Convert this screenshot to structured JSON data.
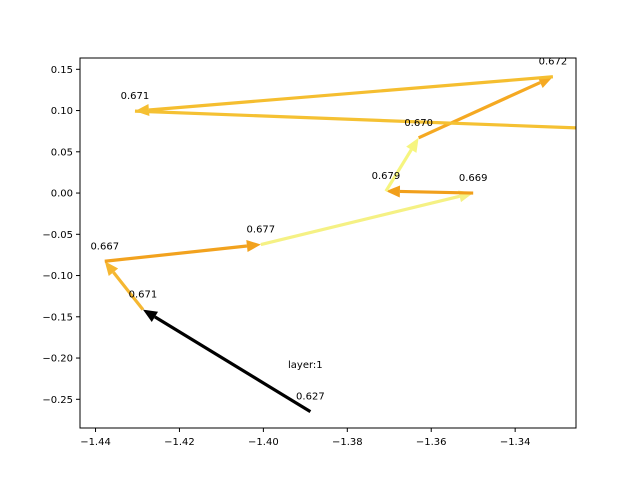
{
  "chart_data": {
    "type": "line",
    "title": "",
    "xlabel": "",
    "ylabel": "",
    "xlim": [
      -1.4437,
      -1.3255
    ],
    "ylim": [
      -0.2848,
      0.1637
    ],
    "x_ticks": [
      {
        "value": -1.44,
        "label": "−1.44"
      },
      {
        "value": -1.42,
        "label": "−1.42"
      },
      {
        "value": -1.4,
        "label": "−1.40"
      },
      {
        "value": -1.38,
        "label": "−1.38"
      },
      {
        "value": -1.36,
        "label": "−1.36"
      },
      {
        "value": -1.34,
        "label": "−1.34"
      }
    ],
    "y_ticks": [
      {
        "value": 0.15,
        "label": "0.15"
      },
      {
        "value": 0.1,
        "label": "0.10"
      },
      {
        "value": 0.05,
        "label": "0.05"
      },
      {
        "value": 0.0,
        "label": "0.00"
      },
      {
        "value": -0.05,
        "label": "−0.05"
      },
      {
        "value": -0.1,
        "label": "−0.10"
      },
      {
        "value": -0.15,
        "label": "−0.15"
      },
      {
        "value": -0.2,
        "label": "−0.20"
      },
      {
        "value": -0.25,
        "label": "−0.25"
      }
    ],
    "grid": false,
    "annotation": "layer:1",
    "points": [
      {
        "x": -1.3888,
        "y": -0.265,
        "label": "0.627"
      },
      {
        "x": -1.4287,
        "y": -0.1413,
        "label": "0.671"
      },
      {
        "x": -1.4378,
        "y": -0.0827,
        "label": "0.667"
      },
      {
        "x": -1.4006,
        "y": -0.0624,
        "label": "0.677"
      },
      {
        "x": -1.35,
        "y": 0.0,
        "label": "0.669"
      },
      {
        "x": -1.3708,
        "y": 0.0023,
        "label": "0.679"
      },
      {
        "x": -1.363,
        "y": 0.067,
        "label": "0.670"
      },
      {
        "x": -1.331,
        "y": 0.141,
        "label": "0.672"
      },
      {
        "x": -1.4306,
        "y": 0.0993,
        "label": "0.671"
      }
    ],
    "trailing_end": {
      "x": -1.3255,
      "y": 0.079
    },
    "colors": [
      "#000000",
      "#f5b731",
      "#f2a21e",
      "#f5f184",
      "#f19f1b",
      "#f6f57f",
      "#f5a922",
      "#f5be30",
      "#f5c133"
    ]
  }
}
